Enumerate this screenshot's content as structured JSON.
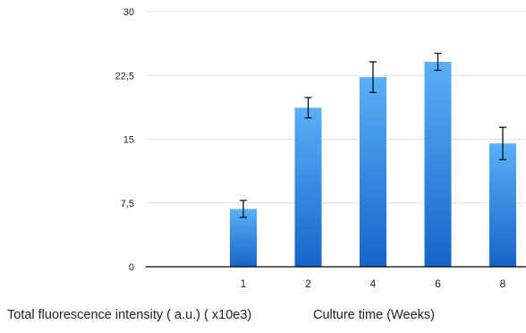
{
  "chart_data": {
    "type": "bar",
    "categories": [
      "",
      "1",
      "2",
      "4",
      "6",
      "8"
    ],
    "values": [
      null,
      6.8,
      18.7,
      22.3,
      24.1,
      14.5
    ],
    "errors": [
      null,
      1.0,
      1.2,
      1.8,
      1.0,
      1.9
    ],
    "ylim": [
      0,
      30
    ],
    "yticks": [
      "0",
      "7,5",
      "15",
      "22,5",
      "30"
    ],
    "ytick_values": [
      0,
      7.5,
      15,
      22.5,
      30
    ],
    "ylabel": "Total fluorescence intensity ( a.u.) ( x10e3)",
    "xlabel": "Culture time (Weeks)",
    "grid": true,
    "colors": {
      "bar_top": "#5AB0F7",
      "bar_bottom": "#1565C8",
      "grid": "#e3e3e3",
      "axis": "#000000",
      "error": "#000000"
    }
  }
}
